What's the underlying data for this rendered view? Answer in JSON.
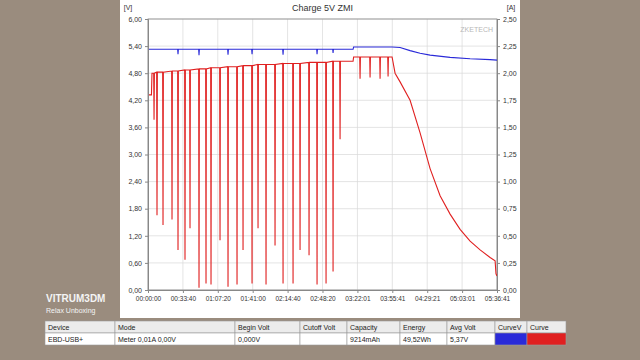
{
  "chart_data": {
    "type": "line",
    "title": "Charge 5V ZMI",
    "y_axis_label": "[V]",
    "y2_axis_label": "[A]",
    "annotations": [
      "ZKETECH"
    ],
    "grid": true,
    "xlim": [
      0,
      20201
    ],
    "xticks": [
      {
        "value": 0,
        "label": "00:00:00"
      },
      {
        "value": 2020,
        "label": "00:33:40"
      },
      {
        "value": 4040,
        "label": "01:07:20"
      },
      {
        "value": 6060,
        "label": "01:41:00"
      },
      {
        "value": 8080,
        "label": "02:14:40"
      },
      {
        "value": 10100,
        "label": "02:48:20"
      },
      {
        "value": 12121,
        "label": "03:22:01"
      },
      {
        "value": 14141,
        "label": "03:55:41"
      },
      {
        "value": 16161,
        "label": "04:29:21"
      },
      {
        "value": 18181,
        "label": "05:03:01"
      },
      {
        "value": 20201,
        "label": "05:36:41"
      }
    ],
    "ylim": [
      0,
      6
    ],
    "yticks": [
      {
        "value": 0,
        "label": "0,00"
      },
      {
        "value": 0.6,
        "label": "0,60"
      },
      {
        "value": 1.2,
        "label": "1,20"
      },
      {
        "value": 1.8,
        "label": "1,80"
      },
      {
        "value": 2.4,
        "label": "2,40"
      },
      {
        "value": 3,
        "label": "3,00"
      },
      {
        "value": 3.6,
        "label": "3,60"
      },
      {
        "value": 4.2,
        "label": "4,20"
      },
      {
        "value": 4.8,
        "label": "4,80"
      },
      {
        "value": 5.4,
        "label": "5,40"
      },
      {
        "value": 6,
        "label": "6,00"
      }
    ],
    "y2lim": [
      0,
      2.5
    ],
    "y2ticks": [
      {
        "value": 0,
        "label": "0,00"
      },
      {
        "value": 0.25,
        "label": "0,25"
      },
      {
        "value": 0.5,
        "label": "0,50"
      },
      {
        "value": 0.75,
        "label": "0,75"
      },
      {
        "value": 1,
        "label": "1,00"
      },
      {
        "value": 1.25,
        "label": "1,25"
      },
      {
        "value": 1.5,
        "label": "1,50"
      },
      {
        "value": 1.75,
        "label": "1,75"
      },
      {
        "value": 2,
        "label": "2,00"
      },
      {
        "value": 2.25,
        "label": "2,25"
      },
      {
        "value": 2.5,
        "label": "2,50"
      }
    ],
    "series": [
      {
        "color": "#2a2ad8",
        "x": [
          0,
          1717,
          1737,
          1757,
          2933,
          2953,
          2973,
          4612,
          4632,
          4652,
          6002,
          6022,
          6042,
          7797,
          7817,
          7837,
          9765,
          9785,
          9805,
          10692,
          10712,
          10732,
          11870,
          11900,
          14128,
          14591,
          15170,
          15749,
          16328,
          17486,
          18644,
          19802,
          20201
        ],
        "values": [
          5.33,
          5.33,
          5.22,
          5.33,
          5.33,
          5.2,
          5.33,
          5.33,
          5.21,
          5.33,
          5.33,
          5.22,
          5.33,
          5.33,
          5.21,
          5.33,
          5.33,
          5.22,
          5.33,
          5.33,
          5.25,
          5.33,
          5.33,
          5.38,
          5.38,
          5.37,
          5.3,
          5.24,
          5.2,
          5.15,
          5.12,
          5.1,
          5.09
        ]
      },
      {
        "color": "#e02020",
        "axis": "y2",
        "x": [
          0,
          200,
          230,
          330,
          350,
          370,
          501,
          521,
          541,
          849,
          869,
          889,
          1370,
          1390,
          1410,
          1717,
          1737,
          1757,
          2122,
          2142,
          2162,
          2412,
          2432,
          2452,
          2933,
          2953,
          2973,
          3338,
          3358,
          3378,
          3628,
          3648,
          3668,
          4149,
          4169,
          4189,
          4612,
          4632,
          4652,
          5133,
          5153,
          5173,
          5481,
          5501,
          5521,
          6002,
          6022,
          6042,
          6349,
          6369,
          6389,
          6812,
          6832,
          6852,
          7333,
          7353,
          7373,
          7797,
          7817,
          7837,
          8376,
          8396,
          8416,
          8781,
          8801,
          8821,
          9302,
          9322,
          9342,
          9765,
          9785,
          9805,
          10286,
          10306,
          10326,
          10692,
          10712,
          10732,
          11097,
          11117,
          11137,
          11870,
          11900,
          12255,
          12275,
          12295,
          12834,
          12854,
          12874,
          13413,
          13433,
          13453,
          13876,
          13896,
          13916,
          14128,
          14301,
          14591,
          15170,
          15749,
          16328,
          16907,
          17486,
          18065,
          18644,
          19223,
          19802,
          20091,
          20143,
          20201
        ],
        "values": [
          1.8,
          1.8,
          2.0,
          2.0,
          1.57,
          2.0,
          2.01,
          0.69,
          2.01,
          2.01,
          0.6,
          2.01,
          2.02,
          0.65,
          2.02,
          2.02,
          0.37,
          2.02,
          2.03,
          0.28,
          2.03,
          2.03,
          0.57,
          2.03,
          2.04,
          0.02,
          2.04,
          2.04,
          0.06,
          2.04,
          2.05,
          0.05,
          2.05,
          2.05,
          0.46,
          2.05,
          2.06,
          0.03,
          2.06,
          2.06,
          0.05,
          2.06,
          2.07,
          0.37,
          2.07,
          2.07,
          0.06,
          2.07,
          2.08,
          0.57,
          2.08,
          2.08,
          0.05,
          2.08,
          2.08,
          0.41,
          2.08,
          2.09,
          0.06,
          2.09,
          2.09,
          0.06,
          2.09,
          2.09,
          0.37,
          2.09,
          2.1,
          0.32,
          2.1,
          2.1,
          0.05,
          2.1,
          2.1,
          0.06,
          2.1,
          2.11,
          0.17,
          2.11,
          2.11,
          1.39,
          2.11,
          2.11,
          2.15,
          2.15,
          1.95,
          2.15,
          2.15,
          1.96,
          2.15,
          2.15,
          1.95,
          2.15,
          2.15,
          1.97,
          2.15,
          2.15,
          2.0,
          1.92,
          1.75,
          1.45,
          1.12,
          0.87,
          0.7,
          0.56,
          0.45,
          0.37,
          0.3,
          0.27,
          0.15,
          0.13
        ]
      }
    ]
  },
  "info_table": {
    "headers": [
      "Device",
      "Mode",
      "Begin Volt",
      "Cutoff Volt",
      "Capacity",
      "Energy",
      "Avg Volt",
      "CurveV",
      "Curve"
    ],
    "rows": [
      [
        "EBD-USB+",
        "Meter 0,01A 0,00V",
        "0,000V",
        null,
        "9214mAh",
        "49,52Wh",
        "5,37V",
        null,
        null
      ]
    ]
  },
  "overlay": {
    "channel": "VITRUM3DM",
    "subtitle": "Relax Unboxing"
  }
}
